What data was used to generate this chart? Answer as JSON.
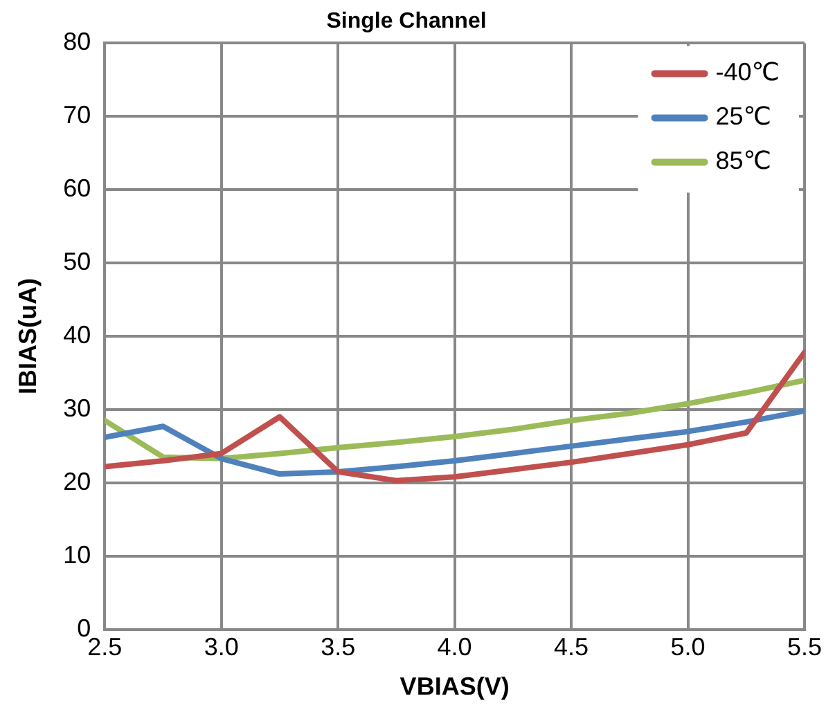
{
  "chart_data": {
    "type": "line",
    "title": "Single Channel",
    "xlabel": "VBIAS(V)",
    "ylabel": "IBIAS(uA)",
    "x": [
      2.5,
      2.75,
      3.0,
      3.25,
      3.5,
      3.75,
      4.0,
      4.25,
      4.5,
      4.75,
      5.0,
      5.25,
      5.5
    ],
    "series": [
      {
        "name": "-40℃",
        "color": "#c0504d",
        "values": [
          22.2,
          23,
          24,
          29,
          21.5,
          20.3,
          20.8,
          21.8,
          22.8,
          24,
          25.2,
          26.8,
          37.8
        ]
      },
      {
        "name": "25℃",
        "color": "#4f81bd",
        "values": [
          26.2,
          27.7,
          23.3,
          21.2,
          21.5,
          22.2,
          23,
          24,
          25,
          26,
          27,
          28.3,
          29.8
        ]
      },
      {
        "name": "85℃",
        "color": "#9bbb59",
        "values": [
          28.5,
          23.5,
          23.3,
          24,
          24.8,
          25.5,
          26.3,
          27.3,
          28.5,
          29.5,
          30.8,
          32.3,
          34
        ]
      }
    ],
    "xlim": [
      2.5,
      5.5
    ],
    "xticks": [
      {
        "value": 2.5,
        "label": "2.5"
      },
      {
        "value": 3,
        "label": "3.0"
      },
      {
        "value": 3.5,
        "label": "3.5"
      },
      {
        "value": 4,
        "label": "4.0"
      },
      {
        "value": 4.5,
        "label": "4.5"
      },
      {
        "value": 5,
        "label": "5.0"
      },
      {
        "value": 5.5,
        "label": "5.5"
      }
    ],
    "ylim": [
      0,
      80
    ],
    "yticks": [
      0,
      10,
      20,
      30,
      40,
      50,
      60,
      70,
      80
    ],
    "grid": true,
    "legend": "top right",
    "marker": "none",
    "line_style": "solid"
  }
}
